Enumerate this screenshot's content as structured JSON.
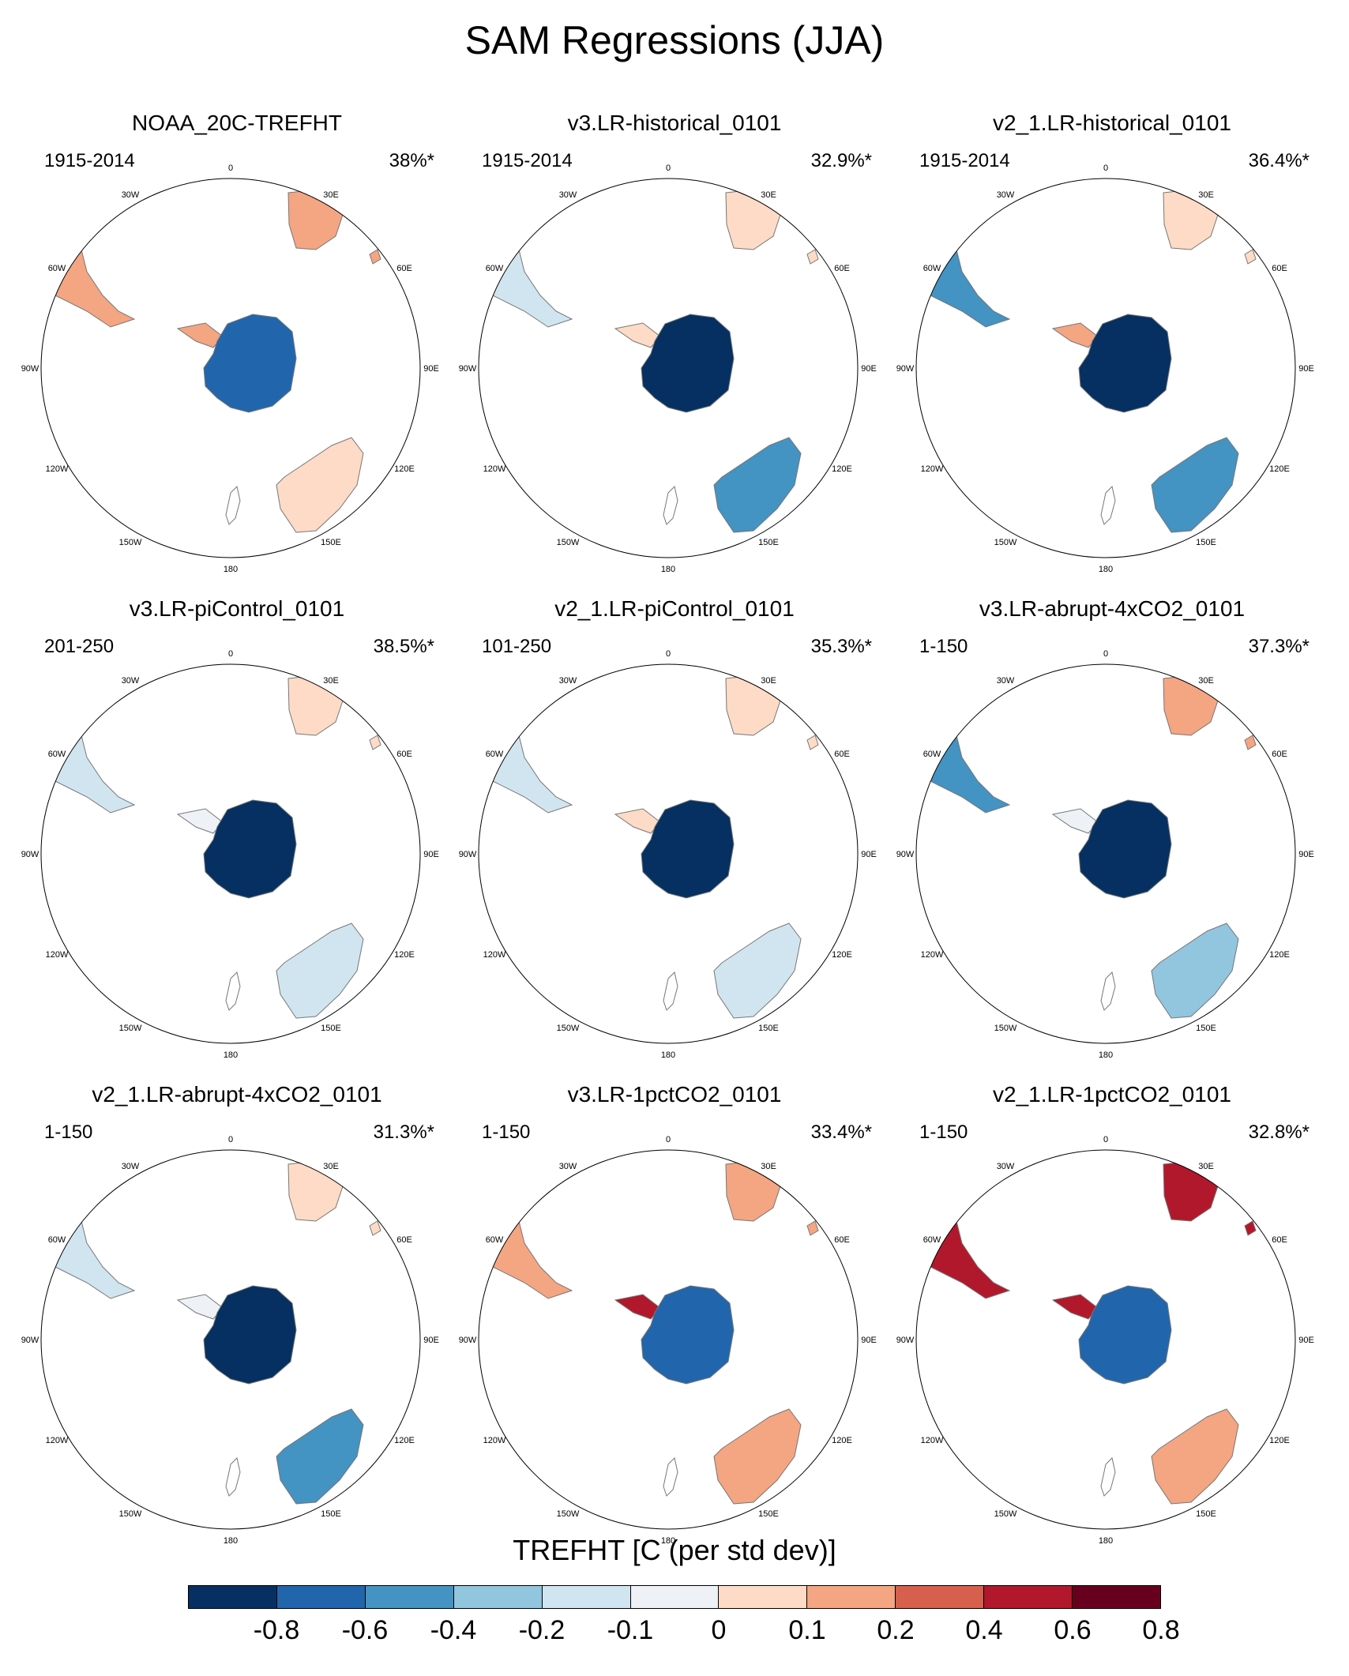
{
  "title": "SAM Regressions (JJA)",
  "colorbar": {
    "title": "TREFHT [C (per std dev)]",
    "labels": [
      "-0.8",
      "-0.6",
      "-0.4",
      "-0.2",
      "-0.1",
      "0",
      "0.1",
      "0.2",
      "0.4",
      "0.6",
      "0.8"
    ],
    "colors": [
      "#053061",
      "#2166ac",
      "#4393c3",
      "#92c5de",
      "#d1e5f0",
      "#eef2f6",
      "#fddbc7",
      "#f4a582",
      "#d6604d",
      "#b2182b",
      "#67001f"
    ]
  },
  "map_labels": [
    "0",
    "30E",
    "60E",
    "90E",
    "120E",
    "150E",
    "180",
    "150W",
    "120W",
    "90W",
    "60W",
    "30W"
  ],
  "chart_data": {
    "type": "map",
    "variable": "TREFHT",
    "units": "C (per std dev)",
    "season": "JJA",
    "panels": [
      {
        "title": "NOAA_20C-TREFHT",
        "period": "1915-2014",
        "pct": "38%*",
        "antarctica": "mixed_strong_neg",
        "peninsula": "pos",
        "south_america": "pos",
        "africa": "pos",
        "australia": "weak_pos"
      },
      {
        "title": "v3.LR-historical_0101",
        "period": "1915-2014",
        "pct": "32.9%*",
        "antarctica": "strong_neg",
        "peninsula": "weak_pos",
        "south_america": "weak_neg",
        "africa": "weak_pos",
        "australia": "neg"
      },
      {
        "title": "v2_1.LR-historical_0101",
        "period": "1915-2014",
        "pct": "36.4%*",
        "antarctica": "strong_neg",
        "peninsula": "pos",
        "south_america": "neg",
        "africa": "weak_pos",
        "australia": "neg"
      },
      {
        "title": "v3.LR-piControl_0101",
        "period": "201-250",
        "pct": "38.5%*",
        "antarctica": "strong_neg",
        "peninsula": "neutral",
        "south_america": "weak_neg",
        "africa": "weak_pos",
        "australia": "weak_neg"
      },
      {
        "title": "v2_1.LR-piControl_0101",
        "period": "101-250",
        "pct": "35.3%*",
        "antarctica": "strong_neg",
        "peninsula": "weak_pos",
        "south_america": "weak_neg",
        "africa": "weak_pos",
        "australia": "weak_neg"
      },
      {
        "title": "v3.LR-abrupt-4xCO2_0101",
        "period": "1-150",
        "pct": "37.3%*",
        "antarctica": "strong_neg",
        "peninsula": "neutral",
        "south_america": "neg",
        "africa": "pos",
        "australia": "mixed"
      },
      {
        "title": "v2_1.LR-abrupt-4xCO2_0101",
        "period": "1-150",
        "pct": "31.3%*",
        "antarctica": "strong_neg",
        "peninsula": "neutral",
        "south_america": "weak_neg",
        "africa": "weak_pos",
        "australia": "neg"
      },
      {
        "title": "v3.LR-1pctCO2_0101",
        "period": "1-150",
        "pct": "33.4%*",
        "antarctica": "mixed_neg",
        "peninsula": "strong_pos",
        "south_america": "pos",
        "africa": "pos",
        "australia": "pos"
      },
      {
        "title": "v2_1.LR-1pctCO2_0101",
        "period": "1-150",
        "pct": "32.8%*",
        "antarctica": "mixed_neg",
        "peninsula": "strong_pos",
        "south_america": "strong_pos",
        "africa": "strong_pos",
        "australia": "pos"
      }
    ]
  }
}
